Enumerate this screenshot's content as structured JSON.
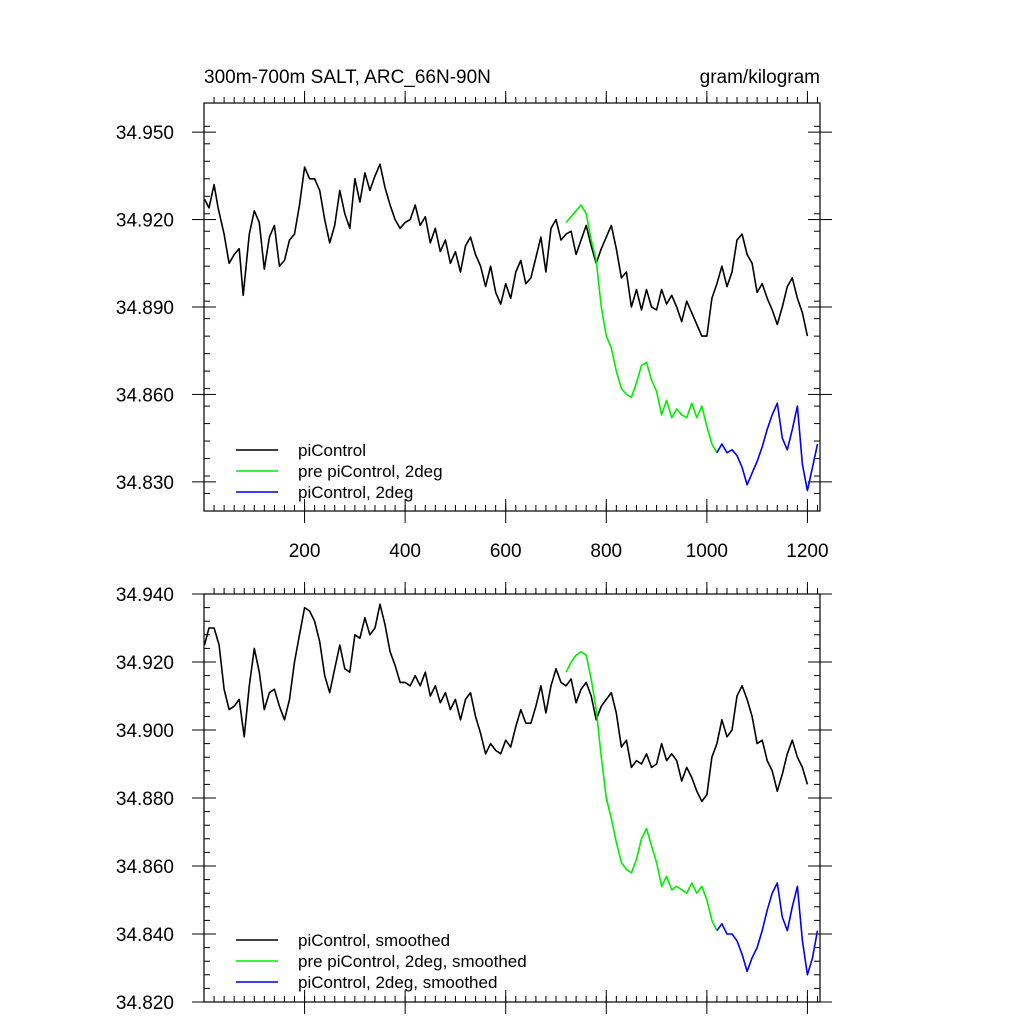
{
  "chart_data": [
    {
      "type": "line",
      "title": "300m-700m SALT, ARC_66N-90N",
      "units": "gram/kilogram",
      "xlim": [
        0,
        1225
      ],
      "ylim": [
        34.82,
        34.96
      ],
      "xticks": [
        200,
        400,
        600,
        800,
        1000,
        1200
      ],
      "xtick_labels": [
        "200",
        "400",
        "600",
        "800",
        "1000",
        "1200"
      ],
      "yticks": [
        34.83,
        34.86,
        34.89,
        34.92,
        34.95
      ],
      "ytick_labels": [
        "34.830",
        "34.860",
        "34.890",
        "34.920",
        "34.950"
      ],
      "legend_position": "bottom-left",
      "series": [
        {
          "name": "piControl",
          "color": "#000000",
          "x": [
            1,
            10,
            20,
            28,
            40,
            50,
            60,
            70,
            78,
            90,
            100,
            110,
            120,
            130,
            140,
            150,
            160,
            170,
            180,
            190,
            200,
            210,
            220,
            230,
            240,
            250,
            260,
            270,
            280,
            290,
            300,
            310,
            320,
            330,
            340,
            350,
            360,
            370,
            380,
            390,
            400,
            410,
            420,
            430,
            440,
            450,
            460,
            470,
            480,
            490,
            500,
            510,
            520,
            530,
            540,
            550,
            560,
            570,
            580,
            590,
            600,
            610,
            620,
            630,
            640,
            650,
            660,
            670,
            680,
            690,
            700,
            710,
            720,
            730,
            740,
            750,
            760,
            770,
            780,
            790,
            800,
            810,
            820,
            830,
            840,
            850,
            860,
            870,
            880,
            890,
            900,
            910,
            920,
            930,
            940,
            950,
            960,
            970,
            980,
            990,
            1000,
            1010,
            1020,
            1030,
            1040,
            1050,
            1060,
            1070,
            1080,
            1090,
            1100,
            1110,
            1120,
            1130,
            1140,
            1150,
            1160,
            1170,
            1180,
            1190,
            1200
          ],
          "values": [
            34.927,
            34.924,
            34.932,
            34.924,
            34.915,
            34.905,
            34.908,
            34.91,
            34.894,
            34.915,
            34.923,
            34.919,
            34.903,
            34.914,
            34.918,
            34.904,
            34.906,
            34.913,
            34.915,
            34.925,
            34.938,
            34.934,
            34.934,
            34.93,
            34.92,
            34.912,
            34.918,
            34.93,
            34.922,
            34.917,
            34.934,
            34.926,
            34.936,
            34.93,
            34.935,
            34.939,
            34.931,
            34.925,
            34.92,
            34.917,
            34.919,
            34.92,
            34.925,
            34.918,
            34.921,
            34.912,
            34.917,
            34.909,
            34.913,
            34.905,
            34.909,
            34.902,
            34.911,
            34.914,
            34.908,
            34.904,
            34.897,
            34.904,
            34.895,
            34.891,
            34.898,
            34.893,
            34.902,
            34.906,
            34.898,
            34.9,
            34.907,
            34.914,
            34.902,
            34.917,
            34.92,
            34.913,
            34.915,
            34.916,
            34.908,
            34.913,
            34.918,
            34.911,
            34.905,
            34.91,
            34.914,
            34.918,
            34.91,
            34.9,
            34.902,
            34.89,
            34.896,
            34.889,
            34.896,
            34.89,
            34.889,
            34.896,
            34.891,
            34.894,
            34.89,
            34.885,
            34.892,
            34.888,
            34.884,
            34.88,
            34.88,
            34.893,
            34.898,
            34.904,
            34.897,
            34.902,
            34.913,
            34.915,
            34.908,
            34.905,
            34.895,
            34.898,
            34.893,
            34.889,
            34.884,
            34.89,
            34.897,
            34.9,
            34.893,
            34.888,
            34.88
          ]
        },
        {
          "name": "pre piControl, 2deg",
          "color": "#00ee00",
          "x": [
            720,
            730,
            740,
            750,
            760,
            770,
            780,
            790,
            800,
            810,
            820,
            830,
            840,
            850,
            860,
            870,
            880,
            890,
            900,
            910,
            920,
            930,
            940,
            950,
            960,
            970,
            980,
            990,
            1000,
            1010,
            1020
          ],
          "values": [
            34.919,
            34.921,
            34.923,
            34.925,
            34.922,
            34.913,
            34.906,
            34.89,
            34.88,
            34.876,
            34.868,
            34.862,
            34.86,
            34.859,
            34.864,
            34.87,
            34.871,
            34.865,
            34.861,
            34.853,
            34.858,
            34.852,
            34.855,
            34.853,
            34.852,
            34.857,
            34.852,
            34.856,
            34.849,
            34.843,
            34.84
          ]
        },
        {
          "name": "piControl, 2deg",
          "color": "#0000ee",
          "x": [
            1020,
            1030,
            1040,
            1050,
            1060,
            1070,
            1080,
            1090,
            1100,
            1110,
            1120,
            1130,
            1140,
            1150,
            1160,
            1170,
            1180,
            1190,
            1200,
            1210,
            1220
          ],
          "values": [
            34.84,
            34.843,
            34.84,
            34.841,
            34.839,
            34.835,
            34.829,
            34.833,
            34.837,
            34.842,
            34.848,
            34.853,
            34.857,
            34.845,
            34.841,
            34.848,
            34.856,
            34.836,
            34.827,
            34.835,
            34.843
          ]
        }
      ]
    },
    {
      "type": "line",
      "xlim": [
        0,
        1225
      ],
      "ylim": [
        34.82,
        34.94
      ],
      "yticks": [
        34.82,
        34.84,
        34.86,
        34.88,
        34.9,
        34.92,
        34.94
      ],
      "ytick_labels": [
        "34.820",
        "34.840",
        "34.860",
        "34.880",
        "34.900",
        "34.920",
        "34.940"
      ],
      "legend_position": "bottom-left",
      "series": [
        {
          "name": "piControl, smoothed",
          "color": "#000000",
          "x": [
            1,
            10,
            20,
            30,
            40,
            50,
            60,
            70,
            80,
            90,
            100,
            110,
            120,
            130,
            140,
            150,
            160,
            170,
            180,
            190,
            200,
            210,
            220,
            230,
            240,
            250,
            260,
            270,
            280,
            290,
            300,
            310,
            320,
            330,
            340,
            350,
            360,
            370,
            380,
            390,
            400,
            410,
            420,
            430,
            440,
            450,
            460,
            470,
            480,
            490,
            500,
            510,
            520,
            530,
            540,
            550,
            560,
            570,
            580,
            590,
            600,
            610,
            620,
            630,
            640,
            650,
            660,
            670,
            680,
            690,
            700,
            710,
            720,
            730,
            740,
            750,
            760,
            770,
            780,
            790,
            800,
            810,
            820,
            830,
            840,
            850,
            860,
            870,
            880,
            890,
            900,
            910,
            920,
            930,
            940,
            950,
            960,
            970,
            980,
            990,
            1000,
            1010,
            1020,
            1030,
            1040,
            1050,
            1060,
            1070,
            1080,
            1090,
            1100,
            1110,
            1120,
            1130,
            1140,
            1150,
            1160,
            1170,
            1180,
            1190,
            1200
          ],
          "values": [
            34.925,
            34.93,
            34.93,
            34.925,
            34.912,
            34.906,
            34.907,
            34.909,
            34.898,
            34.913,
            34.924,
            34.917,
            34.906,
            34.911,
            34.912,
            34.907,
            34.903,
            34.909,
            34.92,
            34.928,
            34.936,
            34.935,
            34.932,
            34.926,
            34.916,
            34.911,
            34.918,
            34.925,
            34.918,
            34.917,
            34.928,
            34.927,
            34.933,
            34.928,
            34.93,
            34.937,
            34.931,
            34.923,
            34.919,
            34.914,
            34.914,
            34.913,
            34.916,
            34.913,
            34.917,
            34.91,
            34.913,
            34.908,
            34.911,
            34.906,
            34.909,
            34.903,
            34.909,
            34.911,
            34.904,
            34.899,
            34.893,
            34.896,
            34.894,
            34.893,
            34.897,
            34.895,
            34.901,
            34.906,
            34.902,
            34.902,
            34.907,
            34.913,
            34.905,
            34.913,
            34.918,
            34.914,
            34.913,
            34.915,
            34.908,
            34.912,
            34.914,
            34.91,
            34.903,
            34.907,
            34.909,
            34.911,
            34.905,
            34.895,
            34.897,
            34.889,
            34.891,
            34.89,
            34.893,
            34.889,
            34.89,
            34.896,
            34.891,
            34.893,
            34.891,
            34.885,
            34.889,
            34.886,
            34.882,
            34.879,
            34.881,
            34.892,
            34.896,
            34.903,
            34.898,
            34.9,
            34.91,
            34.913,
            34.909,
            34.904,
            34.896,
            34.897,
            34.891,
            34.888,
            34.882,
            34.887,
            34.893,
            34.897,
            34.892,
            34.889,
            34.884
          ]
        },
        {
          "name": "pre piControl, 2deg, smoothed",
          "color": "#00ee00",
          "x": [
            720,
            730,
            740,
            750,
            760,
            770,
            780,
            790,
            800,
            810,
            820,
            830,
            840,
            850,
            860,
            870,
            880,
            890,
            900,
            910,
            920,
            930,
            940,
            950,
            960,
            970,
            980,
            990,
            1000,
            1010,
            1020
          ],
          "values": [
            34.917,
            34.92,
            34.922,
            34.923,
            34.922,
            34.915,
            34.906,
            34.892,
            34.88,
            34.874,
            34.867,
            34.861,
            34.859,
            34.858,
            34.862,
            34.868,
            34.871,
            34.866,
            34.861,
            34.854,
            34.857,
            34.853,
            34.854,
            34.853,
            34.852,
            34.855,
            34.852,
            34.854,
            34.85,
            34.844,
            34.841
          ]
        },
        {
          "name": "piControl, 2deg, smoothed",
          "color": "#0000ee",
          "x": [
            1020,
            1030,
            1040,
            1050,
            1060,
            1070,
            1080,
            1090,
            1100,
            1110,
            1120,
            1130,
            1140,
            1150,
            1160,
            1170,
            1180,
            1190,
            1200,
            1210,
            1220
          ],
          "values": [
            34.841,
            34.843,
            34.84,
            34.84,
            34.838,
            34.834,
            34.829,
            34.833,
            34.836,
            34.841,
            34.847,
            34.852,
            34.855,
            34.845,
            34.841,
            34.848,
            34.854,
            34.838,
            34.828,
            34.833,
            34.841
          ]
        }
      ]
    }
  ]
}
